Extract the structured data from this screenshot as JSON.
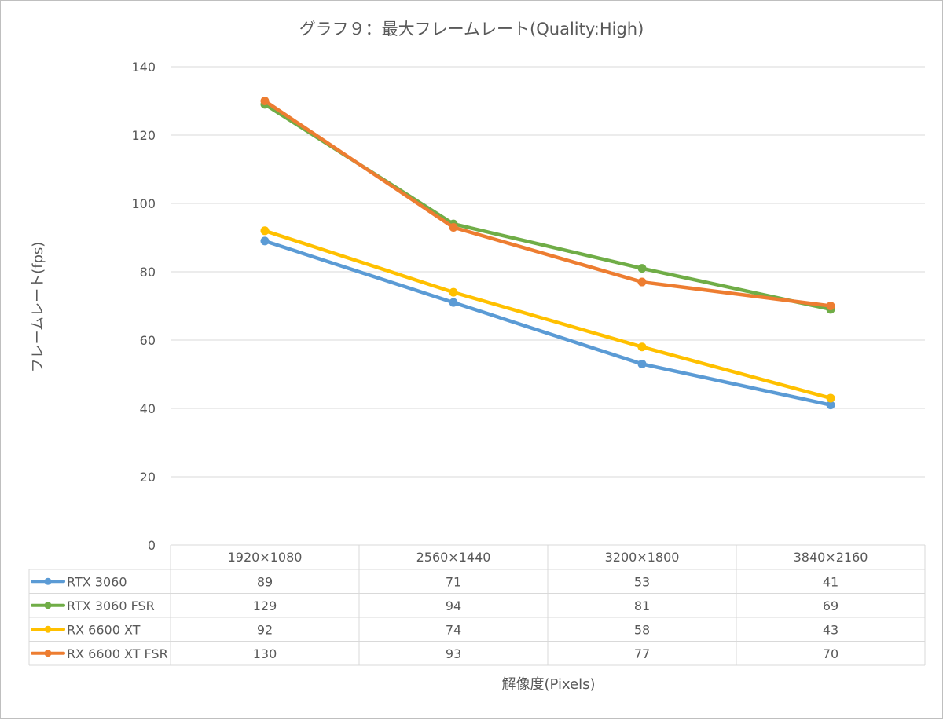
{
  "chart_data": {
    "type": "line",
    "title": "グラフ９：最大フレームレート(Quality:High)",
    "xlabel": "解像度(Pixels)",
    "ylabel": "フレームレート(fps)",
    "ylim": [
      0,
      140
    ],
    "yticks": [
      0,
      20,
      40,
      60,
      80,
      100,
      120,
      140
    ],
    "grid": true,
    "legend": "data-table-bottom",
    "categories": [
      "1920×1080",
      "2560×1440",
      "3200×1800",
      "3840×2160"
    ],
    "series": [
      {
        "name": "RTX 3060",
        "color": "#5B9BD5",
        "values": [
          89,
          71,
          53,
          41
        ]
      },
      {
        "name": "RTX 3060 FSR",
        "color": "#70AD47",
        "values": [
          129,
          94,
          81,
          69
        ]
      },
      {
        "name": "RX 6600 XT",
        "color": "#FFC000",
        "values": [
          92,
          74,
          58,
          43
        ]
      },
      {
        "name": "RX 6600 XT FSR",
        "color": "#ED7D31",
        "values": [
          130,
          93,
          77,
          70
        ]
      }
    ]
  }
}
